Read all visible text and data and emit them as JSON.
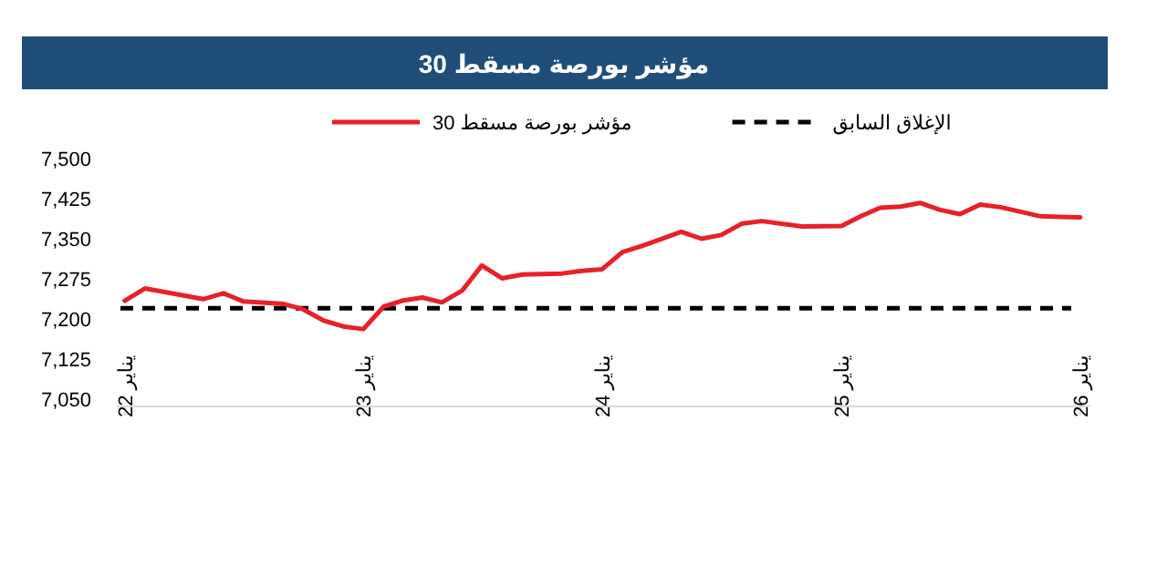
{
  "chart_data": {
    "type": "line",
    "title": "مؤشر بورصة مسقط 30",
    "x": [
      "2022-01",
      "2022-02",
      "2022-04",
      "2022-05",
      "2022-06",
      "2022-07",
      "2022-09",
      "2022-10",
      "2022-11",
      "2022-12",
      "2023-01",
      "2023-02",
      "2023-03",
      "2023-04",
      "2023-05",
      "2023-06",
      "2023-07",
      "2023-08",
      "2023-09",
      "2023-11",
      "2023-12",
      "2024-01",
      "2024-02",
      "2024-03",
      "2024-05",
      "2024-06",
      "2024-07",
      "2024-08",
      "2024-09",
      "2024-11",
      "2025-01",
      "2025-02",
      "2025-03",
      "2025-04",
      "2025-05",
      "2025-06",
      "2025-07",
      "2025-08",
      "2025-09",
      "2025-11",
      "2025-12",
      "2026-01"
    ],
    "series": [
      {
        "name": "مؤشر بورصة مسقط 30",
        "color": "#e8202a",
        "values": [
          7234,
          7257,
          7244,
          7237,
          7248,
          7233,
          7228,
          7218,
          7197,
          7186,
          7181,
          7223,
          7234,
          7240,
          7231,
          7253,
          7300,
          7276,
          7283,
          7285,
          7290,
          7293,
          7325,
          7336,
          7363,
          7350,
          7357,
          7378,
          7383,
          7373,
          7374,
          7393,
          7408,
          7410,
          7417,
          7404,
          7396,
          7414,
          7409,
          7392,
          7391,
          7390
        ]
      }
    ],
    "ref_lines": [
      {
        "axis": "y",
        "value": 7220,
        "label": "الإغلاق السابق",
        "color": "#000000",
        "line_style": "dashed"
      }
    ],
    "xlim": [
      "2021-12-20",
      "2026-01-15"
    ],
    "xticks": [
      {
        "value": "2022-01",
        "label": "يناير 22"
      },
      {
        "value": "2023-01",
        "label": "يناير 23"
      },
      {
        "value": "2024-01",
        "label": "يناير 24"
      },
      {
        "value": "2025-01",
        "label": "يناير 25"
      },
      {
        "value": "2026-01",
        "label": "يناير 26"
      }
    ],
    "ylim": [
      7050,
      7500
    ],
    "yticks": [
      {
        "value": 7050,
        "label": "7,050"
      },
      {
        "value": 7125,
        "label": "7,125"
      },
      {
        "value": 7200,
        "label": "7,200"
      },
      {
        "value": 7275,
        "label": "7,275"
      },
      {
        "value": 7350,
        "label": "7,350"
      },
      {
        "value": 7425,
        "label": "7,425"
      },
      {
        "value": 7500,
        "label": "7,500"
      }
    ],
    "legend": "top",
    "grid": false,
    "marker": "none",
    "line_style": "solid"
  }
}
